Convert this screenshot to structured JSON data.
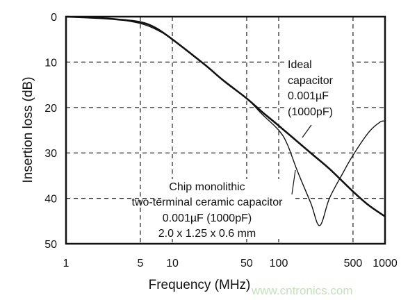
{
  "chart_data": {
    "type": "line",
    "title": "",
    "xlabel": "Frequency (MHz)",
    "ylabel": "Insertion loss (dB)",
    "x_scale": "log",
    "xlim": [
      1,
      1000
    ],
    "ylim": [
      0,
      50
    ],
    "y_inverted": true,
    "grid": true,
    "x_ticks": [
      1,
      5,
      10,
      50,
      100,
      500,
      1000
    ],
    "x_tick_labels": [
      "1",
      "5",
      "10",
      "50",
      "100",
      "500",
      "1000"
    ],
    "y_ticks": [
      0,
      10,
      20,
      30,
      40,
      50
    ],
    "y_tick_labels": [
      "0",
      "10",
      "20",
      "30",
      "40",
      "50"
    ],
    "series": [
      {
        "name": "Ideal capacitor 0.001µF (1000pF)",
        "x": [
          1,
          2,
          3,
          5,
          7,
          10,
          20,
          30,
          50,
          70,
          100,
          200,
          300,
          500,
          700,
          1000
        ],
        "y": [
          0,
          0.3,
          0.6,
          1.2,
          2.5,
          5,
          10.5,
          14,
          18,
          21,
          24,
          30,
          33.5,
          38.5,
          41.5,
          44
        ]
      },
      {
        "name": "Chip monolithic two-terminal ceramic capacitor 0.001µF (1000pF) 2.0 x 1.25 x 0.6 mm",
        "x": [
          1,
          2,
          3,
          5,
          7,
          10,
          20,
          30,
          50,
          70,
          100,
          120,
          150,
          200,
          243,
          300,
          400,
          500,
          700,
          900,
          1000
        ],
        "y": [
          0,
          0.3,
          0.6,
          1.5,
          2.8,
          5,
          10.5,
          14,
          18,
          21.5,
          25,
          28,
          34,
          41,
          46,
          40,
          34.5,
          30.5,
          25.5,
          23.2,
          23
        ]
      }
    ],
    "annotations": [
      {
        "lines": [
          "Ideal",
          "capacitor",
          "0.001µF",
          "(1000pF)"
        ]
      },
      {
        "lines": [
          "Chip monolithic",
          "two-terminal ceramic capacitor",
          "0.001µF (1000pF)",
          "2.0 x 1.25 x 0.6 mm"
        ]
      }
    ]
  },
  "watermark": "www.cntronics.com",
  "colors": {
    "line": "#111111",
    "grid": "#222222",
    "watermark": "#bfe3b8"
  }
}
